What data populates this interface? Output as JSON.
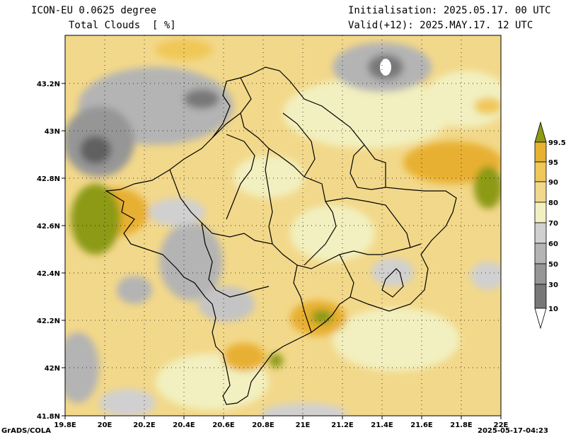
{
  "header": {
    "model": "ICON-EU 0.0625 degree",
    "variable": "Total Clouds  [ %]",
    "init": "Initialisation: 2025.05.17. 00 UTC",
    "valid": "Valid(+12): 2025.MAY.17. 12 UTC"
  },
  "footer": {
    "credit": "GrADS/COLA",
    "timestamp": "2025-05-17-04:23"
  },
  "axes": {
    "x_ticks": [
      "19.8E",
      "20E",
      "20.2E",
      "20.4E",
      "20.6E",
      "20.8E",
      "21E",
      "21.2E",
      "21.4E",
      "21.6E",
      "21.8E",
      "22E"
    ],
    "y_ticks": [
      "43.2N",
      "43N",
      "42.8N",
      "42.6N",
      "42.4N",
      "42.2N",
      "42N",
      "41.8N"
    ]
  },
  "colorbar": {
    "labels": [
      "99.5",
      "95",
      "90",
      "80",
      "70",
      "60",
      "50",
      "30",
      "10"
    ],
    "colors": [
      "#8c9a14",
      "#e8b030",
      "#f0c858",
      "#f2d88a",
      "#f2f0c0",
      "#d0d0d0",
      "#b4b4b4",
      "#969696",
      "#787878",
      "#505050"
    ],
    "bottom_color": "#ffffff"
  }
}
